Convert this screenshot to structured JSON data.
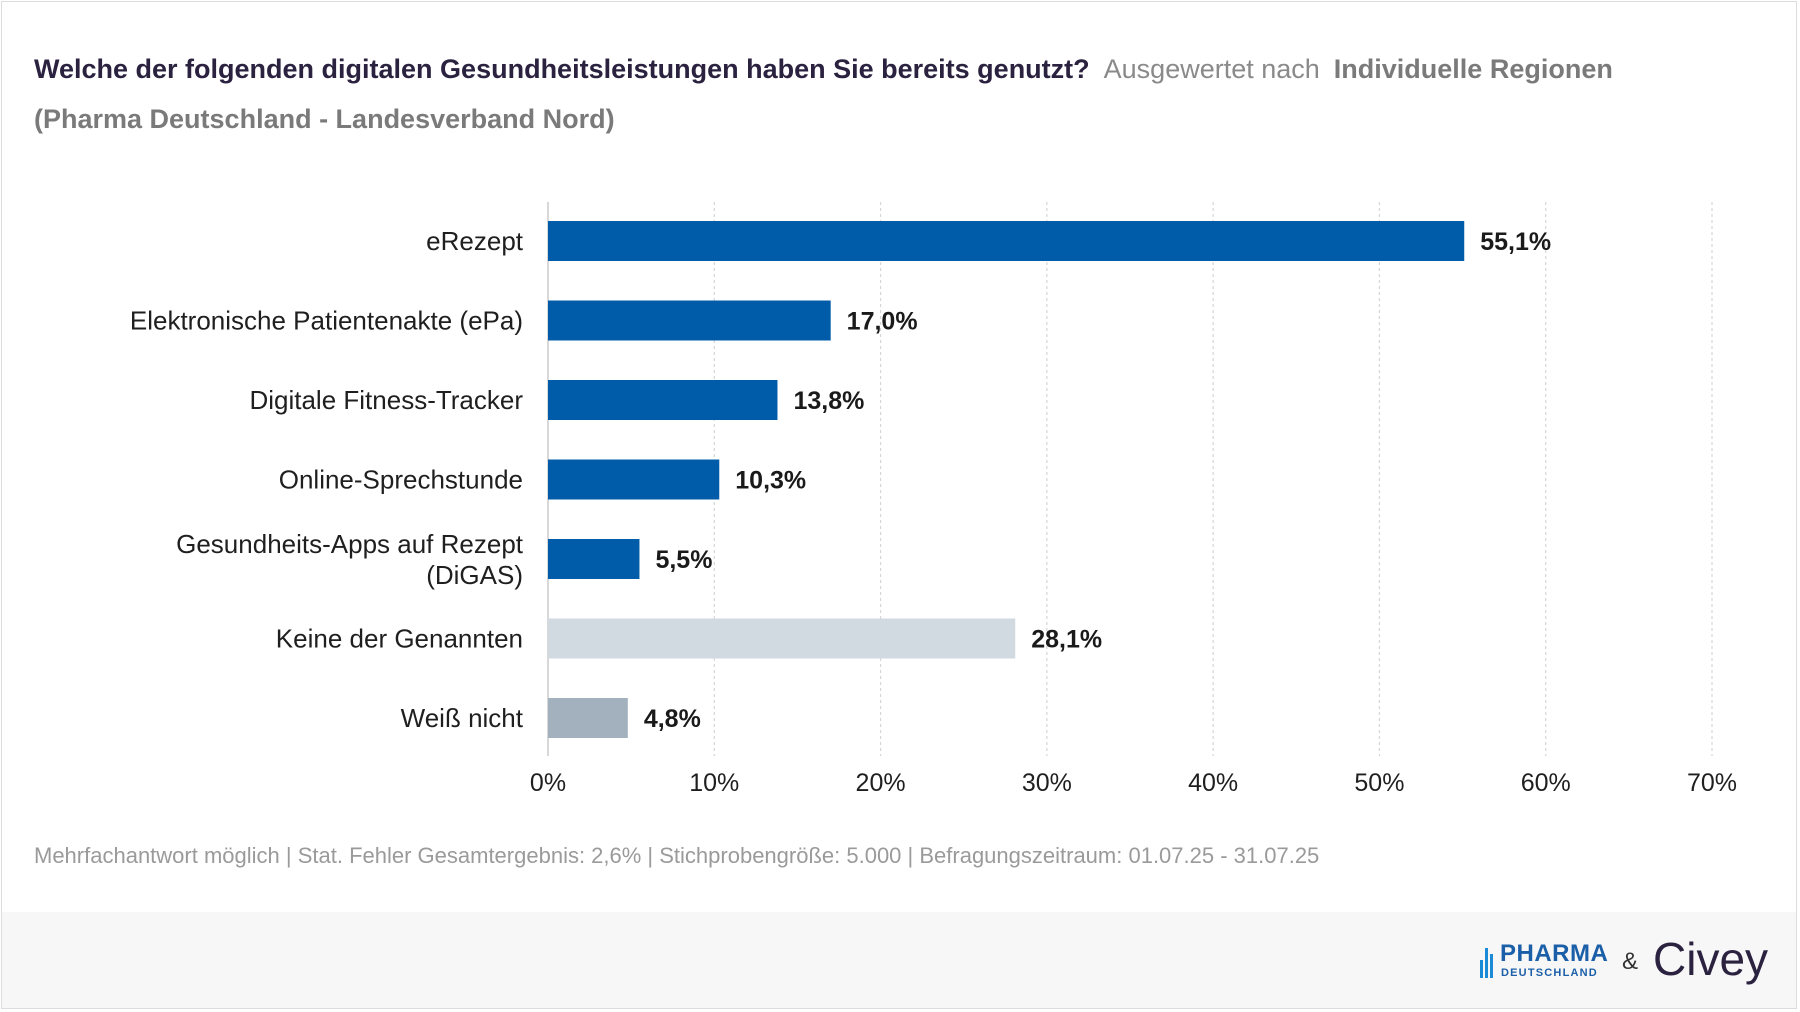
{
  "header": {
    "question": "Welche der folgenden digitalen Gesundheitsleistungen haben Sie bereits genutzt?",
    "evaluated_by": "Ausgewertet nach",
    "grouping": "Individuelle Regionen",
    "subgroup": "(Pharma Deutschland - Landesverband Nord)"
  },
  "chart_data": {
    "type": "bar",
    "orientation": "horizontal",
    "categories": [
      "eRezept",
      "Elektronische Patientenakte (ePa)",
      "Digitale Fitness-Tracker",
      "Online-Sprechstunde",
      "Gesundheits-Apps auf Rezept (DiGAS)",
      "Keine der Genannten",
      "Weiß nicht"
    ],
    "values": [
      55.1,
      17.0,
      13.8,
      10.3,
      5.5,
      28.1,
      4.8
    ],
    "value_labels": [
      "55,1%",
      "17,0%",
      "13,8%",
      "10,3%",
      "5,5%",
      "28,1%",
      "4,8%"
    ],
    "colors": [
      "#005ca9",
      "#005ca9",
      "#005ca9",
      "#005ca9",
      "#005ca9",
      "#d1d9e1",
      "#a2b1bd"
    ],
    "xlim": [
      0,
      70
    ],
    "xticks": [
      0,
      10,
      20,
      30,
      40,
      50,
      60,
      70
    ],
    "xtick_labels": [
      "0%",
      "10%",
      "20%",
      "30%",
      "40%",
      "50%",
      "60%",
      "70%"
    ],
    "grid": true,
    "gridline_color": "#d6d6d6"
  },
  "footnote": "Mehrfachantwort möglich | Stat. Fehler Gesamtergebnis: 2,6% | Stichprobengröße: 5.000 | Befragungszeitraum: 01.07.25 - 31.07.25",
  "logos": {
    "pharma_line1": "PHARMA",
    "pharma_line2": "DEUTSCHLAND",
    "ampersand": "&",
    "civey": "Civey"
  }
}
